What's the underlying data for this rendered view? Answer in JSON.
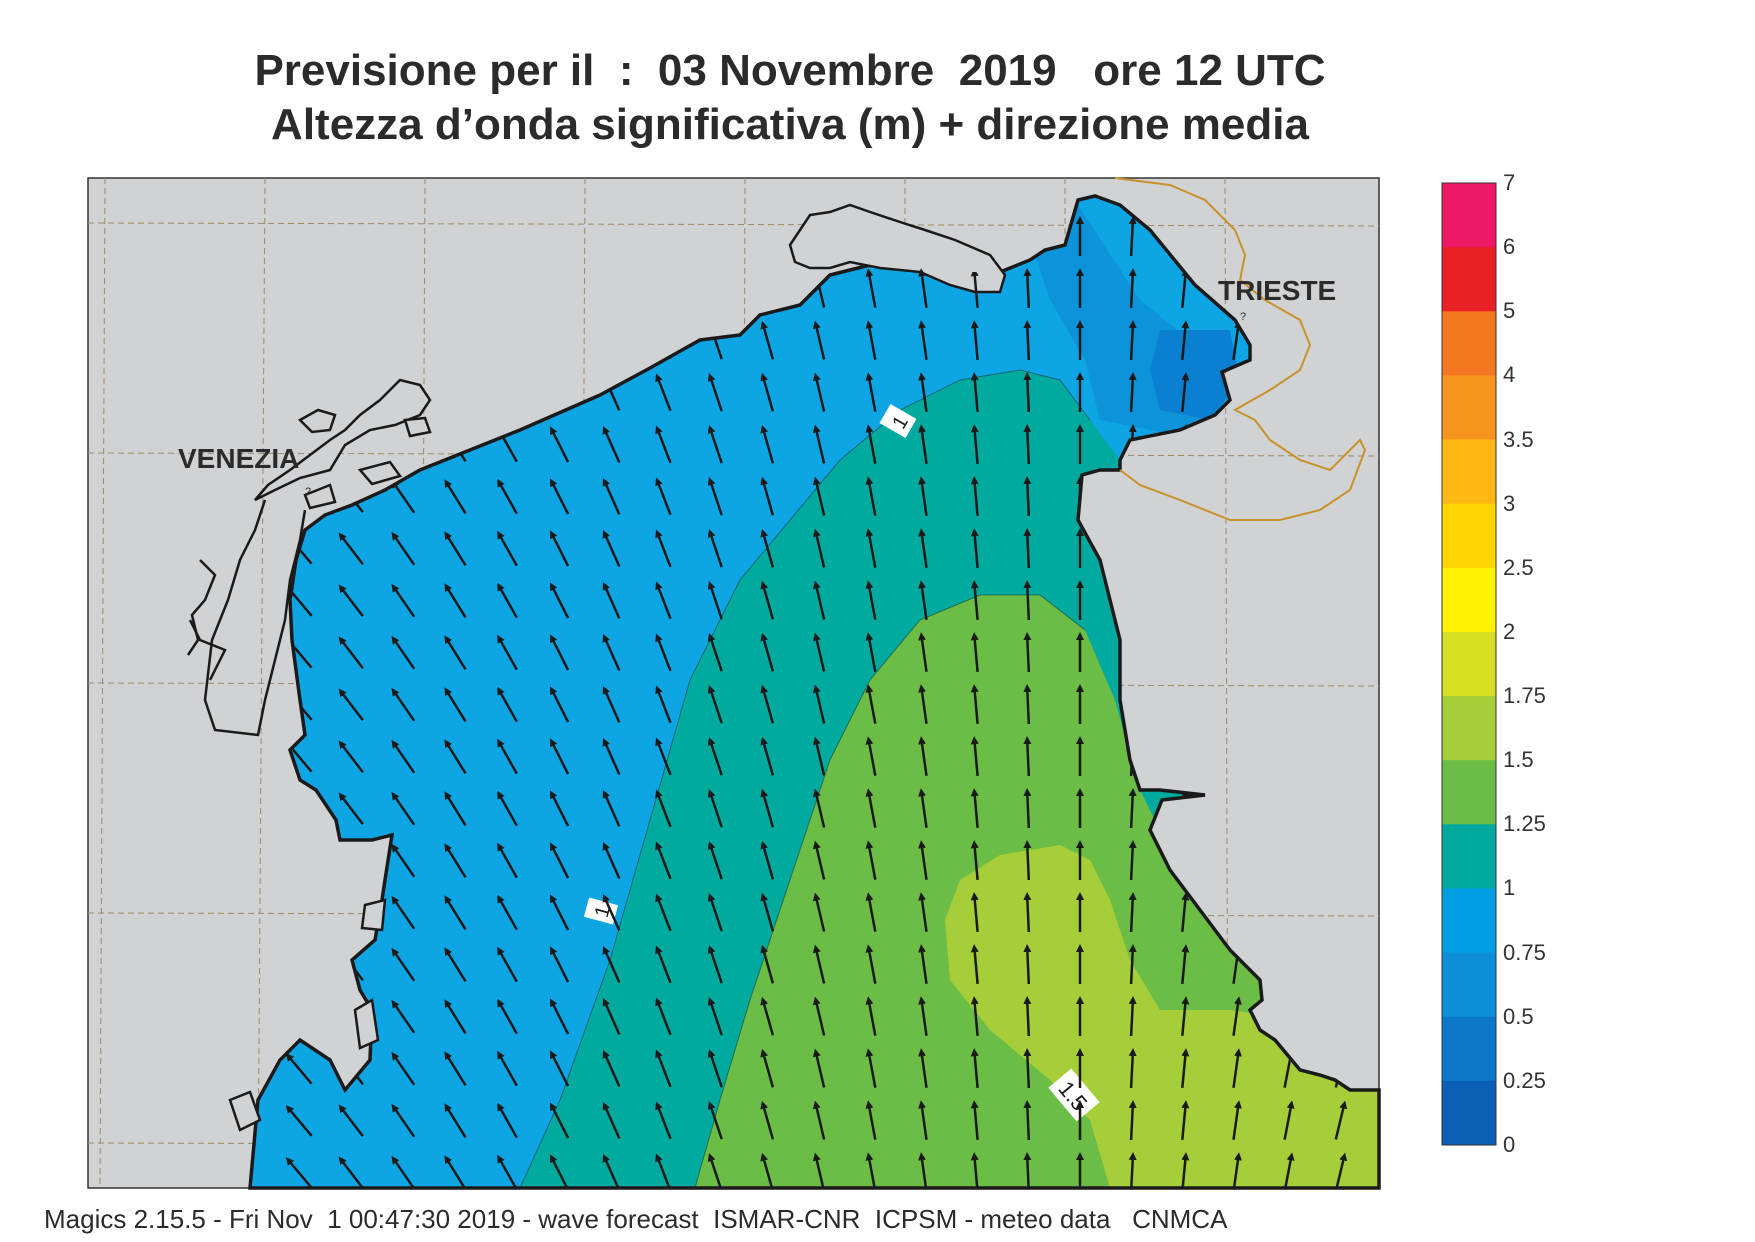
{
  "title_line1": "Previsione per il  :  03 Novembre  2019   ore 12 UTC",
  "title_line2": "Altezza d’onda significativa (m) + direzione media",
  "footer": "Magics 2.15.5 - Fri Nov  1 00:47:30 2019 - wave forecast  ISMAR-CNR  ICPSM - meteo data   CNMCA",
  "places": {
    "venezia": "VENEZIA",
    "trieste": "TRIESTE"
  },
  "contour_labels": [
    "1",
    "1",
    "1.5"
  ],
  "legend": {
    "labels": [
      "7",
      "6",
      "5",
      "4",
      "3.5",
      "3",
      "2.5",
      "2",
      "1.75",
      "1.5",
      "1.25",
      "1",
      "0.75",
      "0.5",
      "0.25",
      "0"
    ],
    "colors": [
      "#ee1866",
      "#ea2027",
      "#f47721",
      "#f7941d",
      "#fdb813",
      "#ffd400",
      "#fff200",
      "#d7df23",
      "#a6ce39",
      "#6bbd45",
      "#00a99d",
      "#009fe3",
      "#0d8fd8",
      "#0a77c8",
      "#0b5fb5"
    ]
  },
  "colors": {
    "land": "#d1d2d4",
    "sea_blue": "#0ea5e4",
    "sea_teal": "#00aa9e",
    "sea_green": "#6bbd45",
    "sea_yellowgreen": "#a6ce39",
    "deep_blue": "#0b7fd0",
    "border": "#c8922a"
  },
  "wave_direction": "NNW"
}
